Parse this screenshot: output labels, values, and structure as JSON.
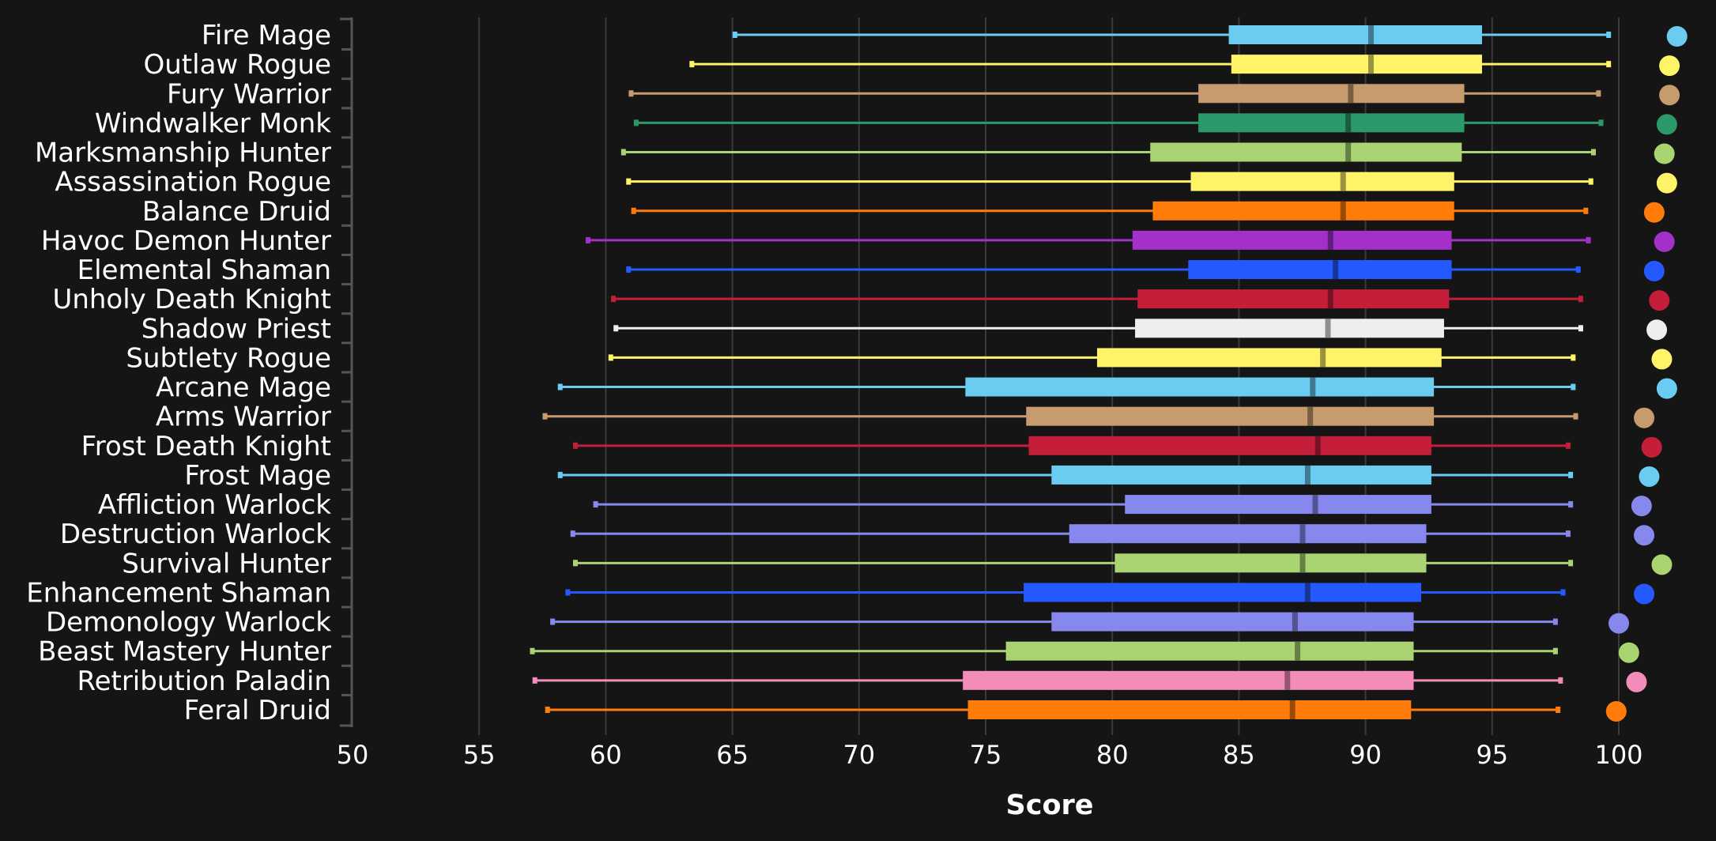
{
  "chart_data": {
    "type": "box",
    "orientation": "horizontal",
    "xlabel": "Score",
    "xlim": [
      50,
      102
    ],
    "xticks": [
      "50",
      "55",
      "60",
      "65",
      "70",
      "75",
      "80",
      "85",
      "90",
      "95",
      "100"
    ],
    "grid": "vertical",
    "legend": "none",
    "series": [
      {
        "name": "Fire Mage",
        "color": "#69ccf0",
        "min": 65.1,
        "q1": 84.6,
        "median": 90.2,
        "q3": 94.6,
        "max": 99.6,
        "top": 102.3
      },
      {
        "name": "Outlaw Rogue",
        "color": "#fff468",
        "min": 63.4,
        "q1": 84.7,
        "median": 90.2,
        "q3": 94.6,
        "max": 99.6,
        "top": 102.0
      },
      {
        "name": "Fury Warrior",
        "color": "#c69b6d",
        "min": 61.0,
        "q1": 83.4,
        "median": 89.4,
        "q3": 93.9,
        "max": 99.2,
        "top": 102.0
      },
      {
        "name": "Windwalker Monk",
        "color": "#2b9a6a",
        "min": 61.2,
        "q1": 83.4,
        "median": 89.3,
        "q3": 93.9,
        "max": 99.3,
        "top": 101.9
      },
      {
        "name": "Marksmanship Hunter",
        "color": "#aad372",
        "min": 60.7,
        "q1": 81.5,
        "median": 89.3,
        "q3": 93.8,
        "max": 99.0,
        "top": 101.8
      },
      {
        "name": "Assassination Rogue",
        "color": "#fff468",
        "min": 60.9,
        "q1": 83.1,
        "median": 89.1,
        "q3": 93.5,
        "max": 98.9,
        "top": 101.9
      },
      {
        "name": "Balance Druid",
        "color": "#ff7c0a",
        "min": 61.1,
        "q1": 81.6,
        "median": 89.1,
        "q3": 93.5,
        "max": 98.7,
        "top": 101.4
      },
      {
        "name": "Havoc Demon Hunter",
        "color": "#a330c9",
        "min": 59.3,
        "q1": 80.8,
        "median": 88.6,
        "q3": 93.4,
        "max": 98.8,
        "top": 101.8
      },
      {
        "name": "Elemental Shaman",
        "color": "#2459ff",
        "min": 60.9,
        "q1": 83.0,
        "median": 88.8,
        "q3": 93.4,
        "max": 98.4,
        "top": 101.4
      },
      {
        "name": "Unholy Death Knight",
        "color": "#c41e3a",
        "min": 60.3,
        "q1": 81.0,
        "median": 88.6,
        "q3": 93.3,
        "max": 98.5,
        "top": 101.6
      },
      {
        "name": "Shadow Priest",
        "color": "#eeeeee",
        "min": 60.4,
        "q1": 80.9,
        "median": 88.5,
        "q3": 93.1,
        "max": 98.5,
        "top": 101.5
      },
      {
        "name": "Subtlety Rogue",
        "color": "#fff468",
        "min": 60.2,
        "q1": 79.4,
        "median": 88.3,
        "q3": 93.0,
        "max": 98.2,
        "top": 101.7
      },
      {
        "name": "Arcane Mage",
        "color": "#69ccf0",
        "min": 58.2,
        "q1": 74.2,
        "median": 87.9,
        "q3": 92.7,
        "max": 98.2,
        "top": 101.9
      },
      {
        "name": "Arms Warrior",
        "color": "#c69b6d",
        "min": 57.6,
        "q1": 76.6,
        "median": 87.8,
        "q3": 92.7,
        "max": 98.3,
        "top": 101.0
      },
      {
        "name": "Frost Death Knight",
        "color": "#c41e3a",
        "min": 58.8,
        "q1": 76.7,
        "median": 88.1,
        "q3": 92.6,
        "max": 98.0,
        "top": 101.3
      },
      {
        "name": "Frost Mage",
        "color": "#69ccf0",
        "min": 58.2,
        "q1": 77.6,
        "median": 87.7,
        "q3": 92.6,
        "max": 98.1,
        "top": 101.2
      },
      {
        "name": "Affliction Warlock",
        "color": "#8788ee",
        "min": 59.6,
        "q1": 80.5,
        "median": 88.0,
        "q3": 92.6,
        "max": 98.1,
        "top": 100.9
      },
      {
        "name": "Destruction Warlock",
        "color": "#8788ee",
        "min": 58.7,
        "q1": 78.3,
        "median": 87.5,
        "q3": 92.4,
        "max": 98.0,
        "top": 101.0
      },
      {
        "name": "Survival Hunter",
        "color": "#aad372",
        "min": 58.8,
        "q1": 80.1,
        "median": 87.5,
        "q3": 92.4,
        "max": 98.1,
        "top": 101.7
      },
      {
        "name": "Enhancement Shaman",
        "color": "#2459ff",
        "min": 58.5,
        "q1": 76.5,
        "median": 87.7,
        "q3": 92.2,
        "max": 97.8,
        "top": 101.0
      },
      {
        "name": "Demonology Warlock",
        "color": "#8788ee",
        "min": 57.9,
        "q1": 77.6,
        "median": 87.2,
        "q3": 91.9,
        "max": 97.5,
        "top": 100.0
      },
      {
        "name": "Beast Mastery Hunter",
        "color": "#aad372",
        "min": 57.1,
        "q1": 75.8,
        "median": 87.3,
        "q3": 91.9,
        "max": 97.5,
        "top": 100.4
      },
      {
        "name": "Retribution Paladin",
        "color": "#f48cba",
        "min": 57.2,
        "q1": 74.1,
        "median": 86.9,
        "q3": 91.9,
        "max": 97.7,
        "top": 100.7
      },
      {
        "name": "Feral Druid",
        "color": "#ff7c0a",
        "min": 57.7,
        "q1": 74.3,
        "median": 87.1,
        "q3": 91.8,
        "max": 97.6,
        "top": 99.9
      }
    ]
  }
}
